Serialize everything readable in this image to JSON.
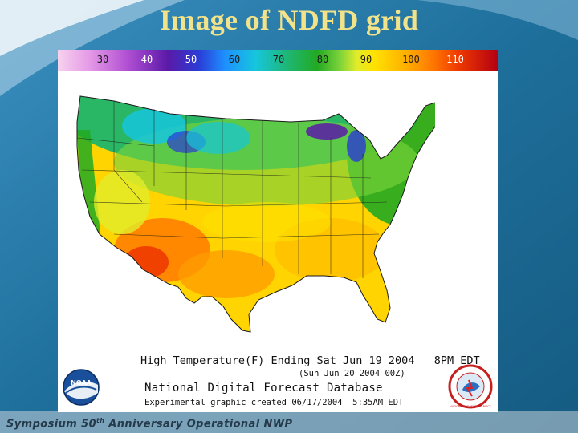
{
  "slide": {
    "title": "Image of NDFD grid",
    "footer_prefix": "Symposium 50",
    "footer_sup": "th",
    "footer_suffix": " Anniversary Operational NWP"
  },
  "legend": {
    "labels": [
      "30",
      "40",
      "50",
      "60",
      "70",
      "80",
      "90",
      "100",
      "110"
    ],
    "units": "F"
  },
  "map": {
    "caption_main": "High Temperature(F) Ending Sat Jun 19 2004   8PM EDT",
    "caption_sub": "(Sun Jun 20 2004 00Z)",
    "caption_db": "National Digital Forecast Database",
    "caption_exp": "Experimental graphic created 06/17/2004  5:35AM EDT"
  },
  "logos": {
    "noaa_text": "NOAA",
    "nws_text": "NATIONAL WEATHER SERVICE"
  },
  "colors": {
    "title": "#f2e28a",
    "background": "#1e6f9b",
    "cool": "#1fb56a",
    "warm": "#ffe100",
    "hot": "#ee3a00",
    "cold": "#5a1aa8"
  }
}
